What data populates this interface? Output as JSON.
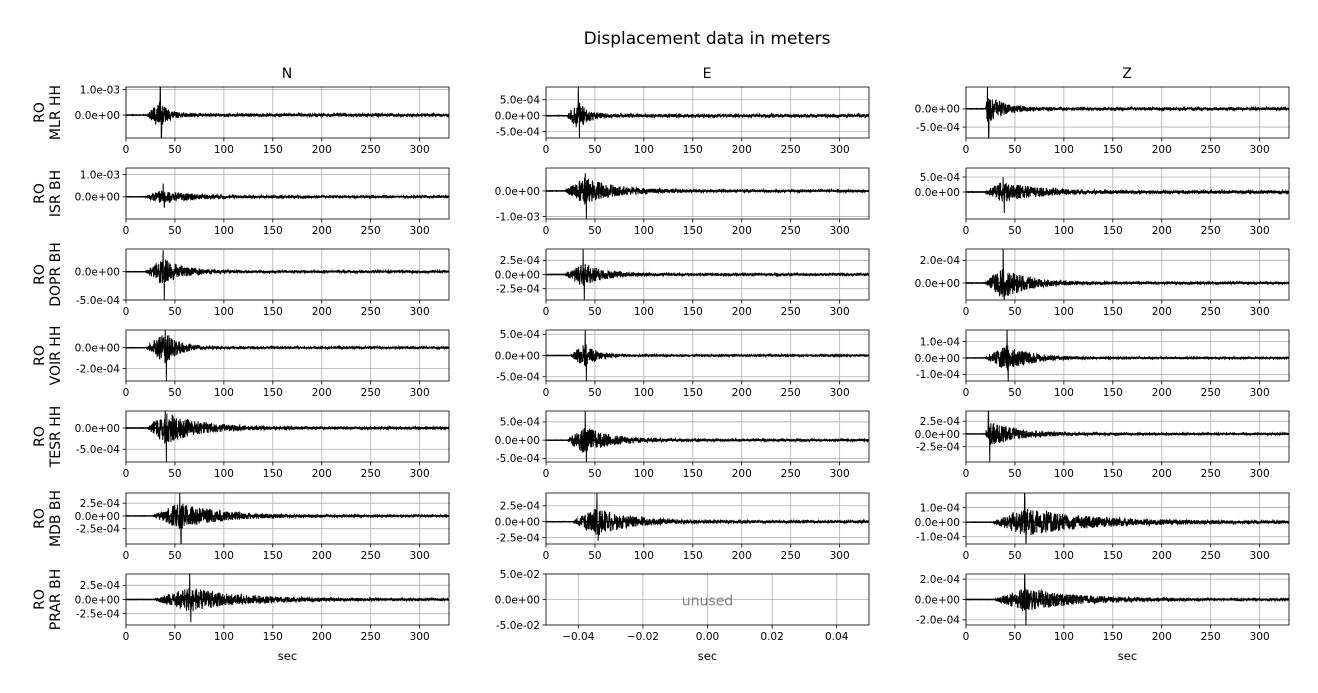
{
  "title": "Displacement data in meters",
  "column_titles": [
    "N",
    "E",
    "Z"
  ],
  "row_labels": [
    {
      "network": "RO",
      "station": "MLR HH"
    },
    {
      "network": "RO",
      "station": "ISR BH"
    },
    {
      "network": "RO",
      "station": "DOPR BH"
    },
    {
      "network": "RO",
      "station": "VOIR HH"
    },
    {
      "network": "RO",
      "station": "TESR HH"
    },
    {
      "network": "RO",
      "station": "MDB BH"
    },
    {
      "network": "RO",
      "station": "PRAR BH"
    }
  ],
  "x_label": "sec",
  "unused_label": "unused",
  "chart_data": {
    "type": "line",
    "grid": true,
    "x_ticks": [
      0,
      50,
      100,
      150,
      200,
      250,
      300
    ],
    "xlim": [
      0,
      330
    ],
    "unused_xlim": [
      -0.05,
      0.05
    ],
    "unused_x_ticks": [
      -0.04,
      -0.02,
      0.0,
      0.02,
      0.04
    ],
    "unused_x_tick_labels": [
      "−0.04",
      "−0.02",
      "0.00",
      "0.02",
      "0.04"
    ],
    "unused_ylim": [
      -0.05,
      0.05
    ],
    "unused_y_ticks": [
      0.05,
      0.0,
      -0.05
    ],
    "unused_y_tick_labels": [
      "5.0e-02",
      "0.0e+00",
      "-5.0e-02"
    ],
    "panels": [
      {
        "station": "MLR HH",
        "component": "N",
        "ylim": [
          -0.0009,
          0.0011
        ],
        "y_ticks": [
          0.001,
          0.0
        ],
        "y_tick_labels": [
          "1.0e-03",
          "0.0e+00"
        ],
        "onset": 22,
        "peak": 35,
        "amp_max": 0.0011,
        "amp_min": -0.0009,
        "decay": 0.12,
        "base": 6e-05
      },
      {
        "station": "MLR HH",
        "component": "E",
        "ylim": [
          -0.0007,
          0.0009
        ],
        "y_ticks": [
          0.0005,
          0.0,
          -0.0005
        ],
        "y_tick_labels": [
          "5.0e-04",
          "0.0e+00",
          "-5.0e-04"
        ],
        "onset": 22,
        "peak": 33,
        "amp_max": 0.0009,
        "amp_min": -0.0007,
        "decay": 0.1,
        "base": 5e-05
      },
      {
        "station": "MLR HH",
        "component": "Z",
        "ylim": [
          -0.0008,
          0.0006
        ],
        "y_ticks": [
          0.0,
          -0.0005
        ],
        "y_tick_labels": [
          "0.0e+00",
          "-5.0e-04"
        ],
        "onset": 20,
        "peak": 22,
        "amp_max": 0.0006,
        "amp_min": -0.0008,
        "decay": 0.06,
        "base": 4e-05
      },
      {
        "station": "ISR BH",
        "component": "N",
        "ylim": [
          -0.001,
          0.0013
        ],
        "y_ticks": [
          0.001,
          0.0
        ],
        "y_tick_labels": [
          "1.0e-03",
          "0.0e+00"
        ],
        "onset": 20,
        "peak": 38,
        "amp_max": 0.0006,
        "amp_min": -0.0005,
        "decay": 0.035,
        "base": 5e-05
      },
      {
        "station": "ISR BH",
        "component": "E",
        "ylim": [
          -0.0011,
          0.0009
        ],
        "y_ticks": [
          0.0,
          -0.001
        ],
        "y_tick_labels": [
          "0.0e+00",
          "-1.0e-03"
        ],
        "onset": 20,
        "peak": 40,
        "amp_max": 0.0007,
        "amp_min": -0.0011,
        "decay": 0.035,
        "base": 5e-05
      },
      {
        "station": "ISR BH",
        "component": "Z",
        "ylim": [
          -0.0009,
          0.0008
        ],
        "y_ticks": [
          0.0005,
          0.0
        ],
        "y_tick_labels": [
          "5.0e-04",
          "0.0e+00"
        ],
        "onset": 20,
        "peak": 38,
        "amp_max": 0.0005,
        "amp_min": -0.0007,
        "decay": 0.03,
        "base": 5e-05
      },
      {
        "station": "DOPR BH",
        "component": "N",
        "ylim": [
          -0.0005,
          0.0004
        ],
        "y_ticks": [
          0.0,
          -0.0005
        ],
        "y_tick_labels": [
          "0.0e+00",
          "-5.0e-04"
        ],
        "onset": 20,
        "peak": 38,
        "amp_max": 0.00038,
        "amp_min": -0.0005,
        "decay": 0.05,
        "base": 2e-05
      },
      {
        "station": "DOPR BH",
        "component": "E",
        "ylim": [
          -0.00045,
          0.00045
        ],
        "y_ticks": [
          0.00025,
          0.0,
          -0.00025
        ],
        "y_tick_labels": [
          "2.5e-04",
          "0.0e+00",
          "-2.5e-04"
        ],
        "onset": 20,
        "peak": 38,
        "amp_max": 0.00045,
        "amp_min": -0.00045,
        "decay": 0.05,
        "base": 2e-05
      },
      {
        "station": "DOPR BH",
        "component": "Z",
        "ylim": [
          -0.00015,
          0.0003
        ],
        "y_ticks": [
          0.0002,
          0.0
        ],
        "y_tick_labels": [
          "2.0e-04",
          "0.0e+00"
        ],
        "onset": 20,
        "peak": 38,
        "amp_max": 0.0003,
        "amp_min": -0.00015,
        "decay": 0.04,
        "base": 1e-05
      },
      {
        "station": "VOIR HH",
        "component": "N",
        "ylim": [
          -0.00032,
          0.00017
        ],
        "y_ticks": [
          0.0,
          -0.0002
        ],
        "y_tick_labels": [
          "0.0e+00",
          "-2.0e-04"
        ],
        "onset": 20,
        "peak": 40,
        "amp_max": 0.00017,
        "amp_min": -0.00032,
        "decay": 0.07,
        "base": 1e-05
      },
      {
        "station": "VOIR HH",
        "component": "E",
        "ylim": [
          -0.0006,
          0.0006
        ],
        "y_ticks": [
          0.0005,
          0.0,
          -0.0005
        ],
        "y_tick_labels": [
          "5.0e-04",
          "0.0e+00",
          "-5.0e-04"
        ],
        "onset": 25,
        "peak": 40,
        "amp_max": 0.0006,
        "amp_min": -0.0006,
        "decay": 0.08,
        "base": 2e-05
      },
      {
        "station": "VOIR HH",
        "component": "Z",
        "ylim": [
          -0.00014,
          0.00017
        ],
        "y_ticks": [
          0.0001,
          0.0,
          -0.0001
        ],
        "y_tick_labels": [
          "1.0e-04",
          "0.0e+00",
          "-1.0e-04"
        ],
        "onset": 20,
        "peak": 42,
        "amp_max": 0.00017,
        "amp_min": -0.00014,
        "decay": 0.04,
        "base": 5e-06
      },
      {
        "station": "TESR HH",
        "component": "N",
        "ylim": [
          -0.0008,
          0.0004
        ],
        "y_ticks": [
          0.0,
          -0.0005
        ],
        "y_tick_labels": [
          "0.0e+00",
          "-5.0e-04"
        ],
        "onset": 22,
        "peak": 40,
        "amp_max": 0.0004,
        "amp_min": -0.0008,
        "decay": 0.03,
        "base": 3e-05
      },
      {
        "station": "TESR HH",
        "component": "E",
        "ylim": [
          -0.0006,
          0.0008
        ],
        "y_ticks": [
          0.0005,
          0.0,
          -0.0005
        ],
        "y_tick_labels": [
          "5.0e-04",
          "0.0e+00",
          "-5.0e-04"
        ],
        "onset": 22,
        "peak": 40,
        "amp_max": 0.0008,
        "amp_min": -0.0006,
        "decay": 0.04,
        "base": 3e-05
      },
      {
        "station": "TESR HH",
        "component": "Z",
        "ylim": [
          -0.00055,
          0.00045
        ],
        "y_ticks": [
          0.00025,
          0.0,
          -0.00025
        ],
        "y_tick_labels": [
          "2.5e-04",
          "0.0e+00",
          "-2.5e-04"
        ],
        "onset": 20,
        "peak": 23,
        "amp_max": 0.00045,
        "amp_min": -0.00055,
        "decay": 0.035,
        "base": 2e-05
      },
      {
        "station": "MDB BH",
        "component": "N",
        "ylim": [
          -0.00055,
          0.00045
        ],
        "y_ticks": [
          0.00025,
          0.0,
          -0.00025
        ],
        "y_tick_labels": [
          "2.5e-04",
          "0.0e+00",
          "-2.5e-04"
        ],
        "onset": 28,
        "peak": 55,
        "amp_max": 0.00045,
        "amp_min": -0.00055,
        "decay": 0.025,
        "base": 2e-05
      },
      {
        "station": "MDB BH",
        "component": "E",
        "ylim": [
          -0.00035,
          0.00045
        ],
        "y_ticks": [
          0.00025,
          0.0,
          -0.00025
        ],
        "y_tick_labels": [
          "2.5e-04",
          "0.0e+00",
          "-2.5e-04"
        ],
        "onset": 28,
        "peak": 52,
        "amp_max": 0.00045,
        "amp_min": -0.0003,
        "decay": 0.03,
        "base": 2e-05
      },
      {
        "station": "MDB BH",
        "component": "Z",
        "ylim": [
          -0.00015,
          0.0002
        ],
        "y_ticks": [
          0.0001,
          0.0,
          -0.0001
        ],
        "y_tick_labels": [
          "1.0e-04",
          "0.0e+00",
          "-1.0e-04"
        ],
        "onset": 28,
        "peak": 60,
        "amp_max": 0.0002,
        "amp_min": -0.00015,
        "decay": 0.015,
        "base": 8e-06
      },
      {
        "station": "PRAR BH",
        "component": "N",
        "ylim": [
          -0.00045,
          0.00045
        ],
        "y_ticks": [
          0.00025,
          0.0,
          -0.00025
        ],
        "y_tick_labels": [
          "2.5e-04",
          "0.0e+00",
          "-2.5e-04"
        ],
        "onset": 30,
        "peak": 65,
        "amp_max": 0.00045,
        "amp_min": -0.0004,
        "decay": 0.02,
        "base": 2e-05
      },
      null,
      {
        "station": "PRAR BH",
        "component": "Z",
        "ylim": [
          -0.00025,
          0.00025
        ],
        "y_ticks": [
          0.0002,
          0.0,
          -0.0002
        ],
        "y_tick_labels": [
          "2.0e-04",
          "0.0e+00",
          "-2.0e-04"
        ],
        "onset": 30,
        "peak": 60,
        "amp_max": 0.00025,
        "amp_min": -0.00025,
        "decay": 0.02,
        "base": 1e-05
      }
    ]
  }
}
